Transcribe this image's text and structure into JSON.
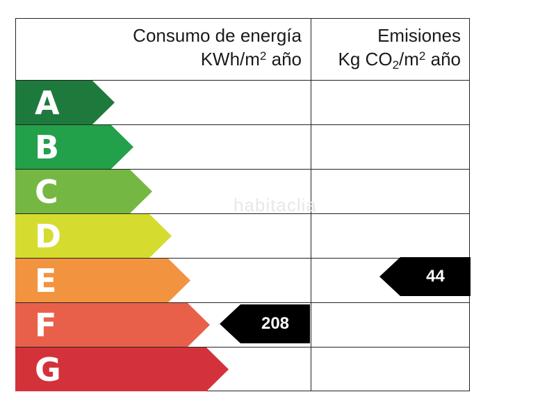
{
  "headers": {
    "energy": {
      "line1": "Consumo de energía",
      "line2_prefix": "KWh/m",
      "line2_sup": "2",
      "line2_suffix": " año"
    },
    "emission": {
      "line1": "Emisiones",
      "line2_prefix": "Kg CO",
      "line2_sub": "2",
      "line2_mid": "/m",
      "line2_sup": "2",
      "line2_suffix": " año"
    }
  },
  "bands": [
    {
      "letter": "A",
      "color": "#1e7a3c"
    },
    {
      "letter": "B",
      "color": "#22a04a"
    },
    {
      "letter": "C",
      "color": "#74b843"
    },
    {
      "letter": "D",
      "color": "#d6dc2f"
    },
    {
      "letter": "E",
      "color": "#f29340"
    },
    {
      "letter": "F",
      "color": "#e9604a"
    },
    {
      "letter": "G",
      "color": "#d4323a"
    }
  ],
  "ratings": {
    "energy": {
      "value": "208",
      "band": "F"
    },
    "emission": {
      "value": "44",
      "band": "E"
    }
  },
  "watermark": "habitaclia"
}
